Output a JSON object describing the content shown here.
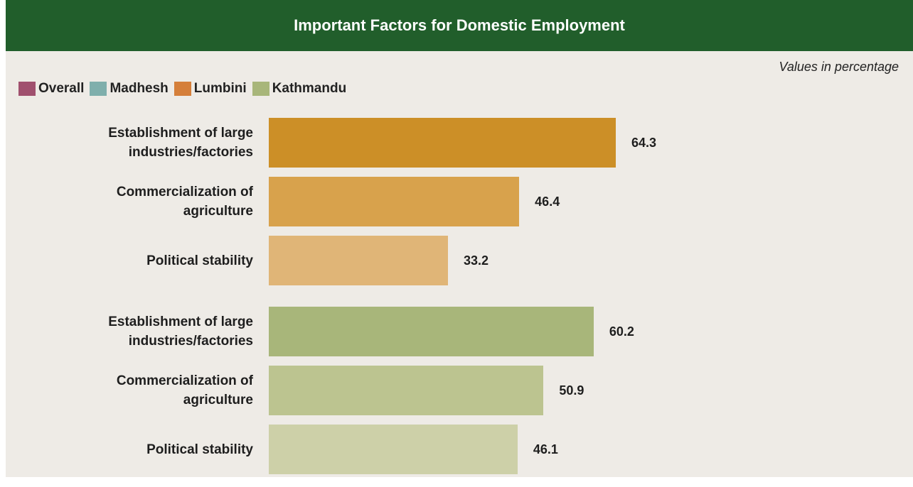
{
  "chart_data": {
    "type": "bar",
    "title": "Important Factors for Domestic Employment",
    "subtitle": "Values in percentage",
    "legend": [
      {
        "name": "Overall",
        "color": "#a0506e"
      },
      {
        "name": "Madhesh",
        "color": "#7fafac"
      },
      {
        "name": "Lumbini",
        "color": "#d57f3a"
      },
      {
        "name": "Kathmandu",
        "color": "#a8b67a"
      }
    ],
    "groups": [
      {
        "categories": [
          "Establishment of large industries/factories",
          "Commercialization of agriculture",
          "Political stability"
        ],
        "values": [
          64.3,
          46.4,
          33.2
        ],
        "colors": [
          "#cc8f27",
          "#d8a24c",
          "#e0b577"
        ]
      },
      {
        "categories": [
          "Establishment of large industries/factories",
          "Commercialization of agriculture",
          "Political stability"
        ],
        "values": [
          60.2,
          50.9,
          46.1
        ],
        "colors": [
          "#a8b67a",
          "#bcc490",
          "#cdd0a8"
        ]
      }
    ]
  }
}
